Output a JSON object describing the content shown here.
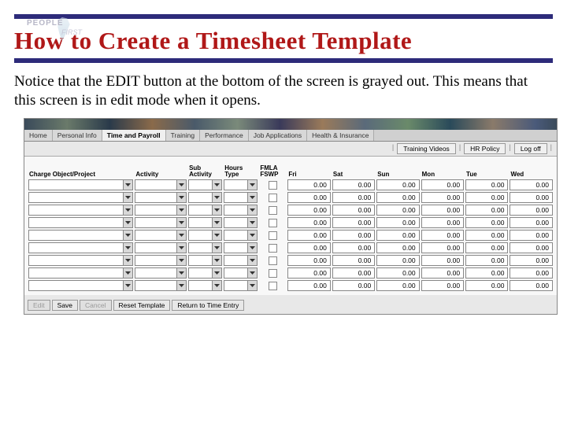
{
  "colors": {
    "rule": "#2d2b7a",
    "title": "#b01818",
    "bg_app": "#e8e8e8",
    "tab_active_bg": "#f0f0f0",
    "tab_bg": "#d8d8d8",
    "cell_bg": "#ffffff",
    "border": "#888888",
    "disabled_text": "#9a9a9a"
  },
  "logo": {
    "top": "PEOPLE",
    "sub": "FIRST"
  },
  "title": "How to Create a Timesheet Template",
  "body_text": "Notice that the EDIT button at the bottom of the screen is grayed out. This means that this screen is in edit mode when it opens.",
  "nav_tabs": [
    {
      "label": "Home",
      "active": false
    },
    {
      "label": "Personal Info",
      "active": false
    },
    {
      "label": "Time and Payroll",
      "active": true
    },
    {
      "label": "Training",
      "active": false
    },
    {
      "label": "Performance",
      "active": false
    },
    {
      "label": "Job Applications",
      "active": false
    },
    {
      "label": "Health & Insurance",
      "active": false
    }
  ],
  "action_buttons": [
    {
      "label": "Training Videos"
    },
    {
      "label": "HR Policy"
    },
    {
      "label": "Log off"
    }
  ],
  "grid": {
    "columns": {
      "charge": "Charge Object/Project",
      "activity": "Activity",
      "sub": "Sub Activity",
      "hours": "Hours Type",
      "fmla": "FMLA FSWP",
      "days": [
        "Fri",
        "Sat",
        "Sun",
        "Mon",
        "Tue",
        "Wed"
      ]
    },
    "col_widths": {
      "charge": 120,
      "activity": 60,
      "sub": 40,
      "hours": 40,
      "fmla": 32,
      "day": 50
    },
    "row_count": 9,
    "cell_value": "0.00"
  },
  "bottom_buttons": [
    {
      "label": "Edit",
      "disabled": true
    },
    {
      "label": "Save",
      "disabled": false
    },
    {
      "label": "Cancel",
      "disabled": true
    },
    {
      "label": "Reset Template",
      "disabled": false
    },
    {
      "label": "Return to Time Entry",
      "disabled": false
    }
  ]
}
